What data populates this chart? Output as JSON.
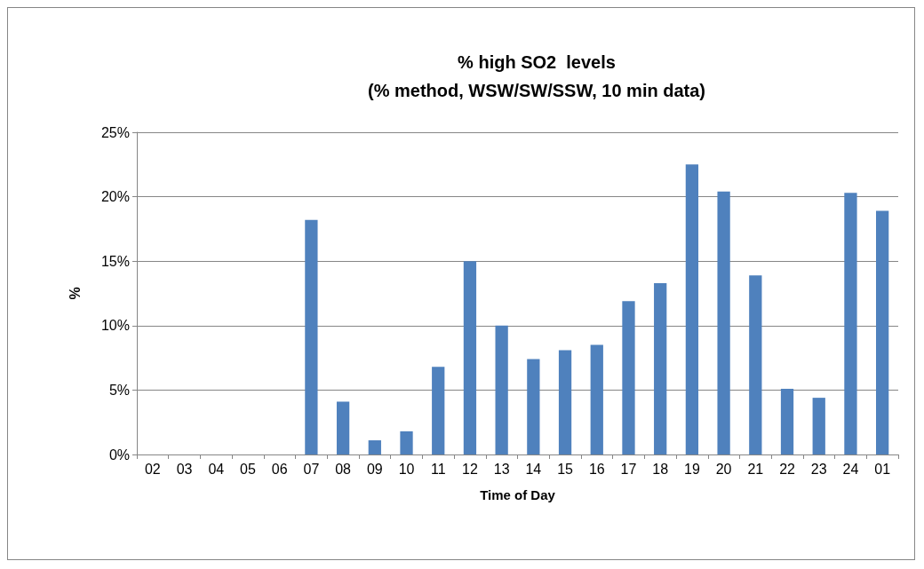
{
  "chart_data": {
    "type": "bar",
    "title": "% high SO2  levels\n(% method, WSW/SW/SSW, 10 min data)",
    "xlabel": "Time of Day",
    "ylabel": "%",
    "categories": [
      "02",
      "03",
      "04",
      "05",
      "06",
      "07",
      "08",
      "09",
      "10",
      "11",
      "12",
      "13",
      "14",
      "15",
      "16",
      "17",
      "18",
      "19",
      "20",
      "21",
      "22",
      "23",
      "24",
      "01"
    ],
    "values": [
      0,
      0,
      0,
      0,
      0,
      18.2,
      4.1,
      1.1,
      1.8,
      6.8,
      15.0,
      10.0,
      7.4,
      8.1,
      8.5,
      11.9,
      13.3,
      22.5,
      20.4,
      13.9,
      5.1,
      4.4,
      20.3,
      18.9
    ],
    "color": "#4f81bd",
    "ylim": [
      0,
      25
    ],
    "yticks": [
      {
        "value": 0,
        "label": "0%"
      },
      {
        "value": 5,
        "label": "5%"
      },
      {
        "value": 10,
        "label": "10%"
      },
      {
        "value": 15,
        "label": "15%"
      },
      {
        "value": 20,
        "label": "20%"
      },
      {
        "value": 25,
        "label": "25%"
      }
    ],
    "grid": "y"
  }
}
